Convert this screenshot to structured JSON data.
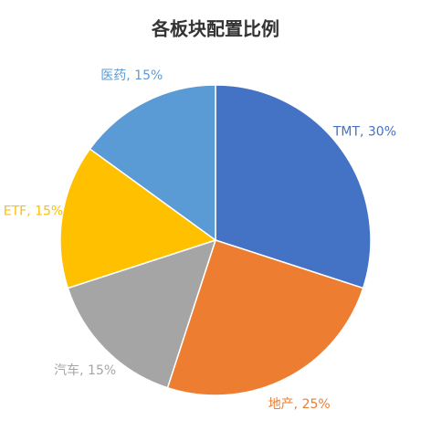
{
  "chart_data": {
    "type": "pie",
    "title": "各板块配置比例",
    "values": [
      30,
      25,
      15,
      15,
      15
    ],
    "value_labels": [
      "TMT, 30%",
      "地产, 25%",
      "汽车, 15%",
      "ETF, 15%",
      "医药, 15%"
    ],
    "colors": [
      "#4472c4",
      "#ed7d31",
      "#a5a5a5",
      "#ffc000",
      "#5b9bd5"
    ]
  }
}
